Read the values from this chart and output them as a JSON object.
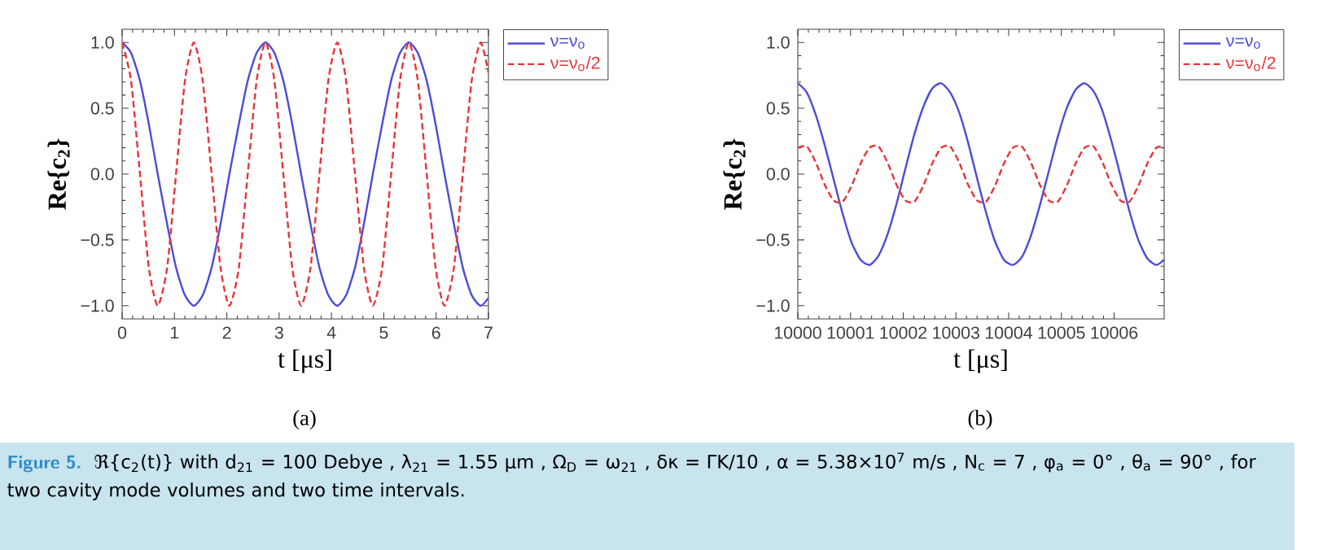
{
  "chart_data": [
    {
      "type": "line",
      "xlabel": "t [μs]",
      "ylabel": "Re{c$_{2}$}",
      "xlim": [
        0,
        7
      ],
      "ylim": [
        -1.1,
        1.1
      ],
      "xticks": [
        0,
        1,
        2,
        3,
        4,
        5,
        6,
        7
      ],
      "yticks": [
        {
          "value": -1,
          "label": "−1.0"
        },
        {
          "value": -0.5,
          "label": "−0.5"
        },
        {
          "value": 0,
          "label": "0.0"
        },
        {
          "value": 0.5,
          "label": "0.5"
        },
        {
          "value": 1,
          "label": "1.0"
        }
      ],
      "grid": false,
      "legend": "top right",
      "x": [
        0,
        0.17,
        0.34,
        0.51,
        0.68,
        0.86,
        1.03,
        1.2,
        1.37,
        1.54,
        1.71,
        1.88,
        2.05,
        2.23,
        2.4,
        2.57,
        2.74,
        2.91,
        3.08,
        3.25,
        3.42,
        3.6,
        3.77,
        3.94,
        4.11,
        4.28,
        4.45,
        4.62,
        4.79,
        4.97,
        5.14,
        5.31,
        5.48,
        5.65,
        5.82,
        5.99,
        6.16,
        6.34,
        6.51,
        6.68,
        6.85,
        7
      ],
      "series": [
        {
          "name": "ν=ν$_{o}$",
          "color": "#4b4bdc",
          "line_style": "solid",
          "values": [
            1,
            0.92,
            0.71,
            0.38,
            0,
            -0.38,
            -0.71,
            -0.92,
            -1,
            -0.92,
            -0.71,
            -0.38,
            0,
            0.38,
            0.71,
            0.92,
            1,
            0.92,
            0.71,
            0.38,
            0,
            -0.38,
            -0.71,
            -0.92,
            -1,
            -0.92,
            -0.71,
            -0.38,
            0,
            0.38,
            0.71,
            0.92,
            1,
            0.92,
            0.71,
            0.38,
            0,
            -0.38,
            -0.71,
            -0.92,
            -1,
            -0.94
          ]
        },
        {
          "name": "ν=ν$_{o}$/2",
          "color": "#e8343a",
          "line_style": "dashed",
          "values": [
            1,
            0.71,
            0,
            -0.71,
            -1,
            -0.71,
            0,
            0.71,
            1,
            0.71,
            0,
            -0.71,
            -1,
            -0.71,
            0,
            0.71,
            1,
            0.71,
            0,
            -0.71,
            -1,
            -0.71,
            0,
            0.71,
            1,
            0.71,
            0,
            -0.71,
            -1,
            -0.71,
            0,
            0.71,
            1,
            0.71,
            0,
            -0.71,
            -1,
            -0.71,
            0,
            0.71,
            1,
            0.77
          ]
        }
      ],
      "annotations": [
        "(a)",
        "Figure 5.",
        "ℜ{c$_{2}$(t)}  with  d$_{21}$ = 100 Debye ,  λ$_{21}$ = 1.55 μm ,  Ω$_{D}$ = ω$_{21}$ ,  δκ = ΓK/10 ,  α = 5.38×10$^{7}$ m/s ,  N$_{c}$ = 7 ,  φ$_{a}$ = 0° ,  θ$_{a}$ = 90° , for two cavity mode volumes and two time intervals."
      ]
    },
    {
      "type": "line",
      "xlabel": "t [μs]",
      "ylabel": "Re{c$_{2}$}",
      "xlim": [
        10000,
        10006.95
      ],
      "ylim": [
        -1.1,
        1.1
      ],
      "xticks": [
        10000,
        10001,
        10002,
        10003,
        10004,
        10005,
        10006
      ],
      "yticks": [
        {
          "value": -1,
          "label": "−1.0"
        },
        {
          "value": -0.5,
          "label": "−0.5"
        },
        {
          "value": 0,
          "label": "0.0"
        },
        {
          "value": 0.5,
          "label": "0.5"
        },
        {
          "value": 1,
          "label": "1.0"
        }
      ],
      "grid": false,
      "legend": "top right",
      "x": [
        10000,
        10000.17,
        10000.34,
        10000.51,
        10000.68,
        10000.85,
        10001.02,
        10001.19,
        10001.36,
        10001.53,
        10001.7,
        10001.87,
        10002.04,
        10002.21,
        10002.38,
        10002.55,
        10002.72,
        10002.89,
        10003.06,
        10003.23,
        10003.4,
        10003.57,
        10003.74,
        10003.91,
        10004.08,
        10004.25,
        10004.42,
        10004.59,
        10004.76,
        10004.93,
        10005.1,
        10005.27,
        10005.44,
        10005.61,
        10005.78,
        10005.95,
        10006.12,
        10006.29,
        10006.46,
        10006.63,
        10006.8,
        10006.95
      ],
      "series": [
        {
          "name": "ν=ν$_{o}$",
          "color": "#4b4bdc",
          "line_style": "solid",
          "values": [
            0.69,
            0.62,
            0.45,
            0.22,
            -0.04,
            -0.3,
            -0.52,
            -0.65,
            -0.69,
            -0.62,
            -0.46,
            -0.23,
            0.04,
            0.3,
            0.51,
            0.65,
            0.69,
            0.62,
            0.47,
            0.24,
            -0.03,
            -0.29,
            -0.51,
            -0.65,
            -0.69,
            -0.63,
            -0.47,
            -0.24,
            0.02,
            0.28,
            0.5,
            0.64,
            0.69,
            0.63,
            0.48,
            0.25,
            -0.01,
            -0.28,
            -0.5,
            -0.64,
            -0.69,
            -0.65
          ]
        },
        {
          "name": "ν=ν$_{o}$/2",
          "color": "#e8343a",
          "line_style": "dashed",
          "values": [
            0.2,
            0.21,
            0.09,
            -0.08,
            -0.2,
            -0.21,
            -0.09,
            0.08,
            0.2,
            0.21,
            0.09,
            -0.08,
            -0.2,
            -0.21,
            -0.09,
            0.08,
            0.2,
            0.21,
            0.09,
            -0.08,
            -0.2,
            -0.21,
            -0.09,
            0.08,
            0.2,
            0.21,
            0.09,
            -0.08,
            -0.2,
            -0.21,
            -0.09,
            0.08,
            0.2,
            0.21,
            0.09,
            -0.08,
            -0.2,
            -0.21,
            -0.09,
            0.08,
            0.2,
            0.21
          ]
        }
      ],
      "annotations": [
        "(b)"
      ]
    }
  ]
}
